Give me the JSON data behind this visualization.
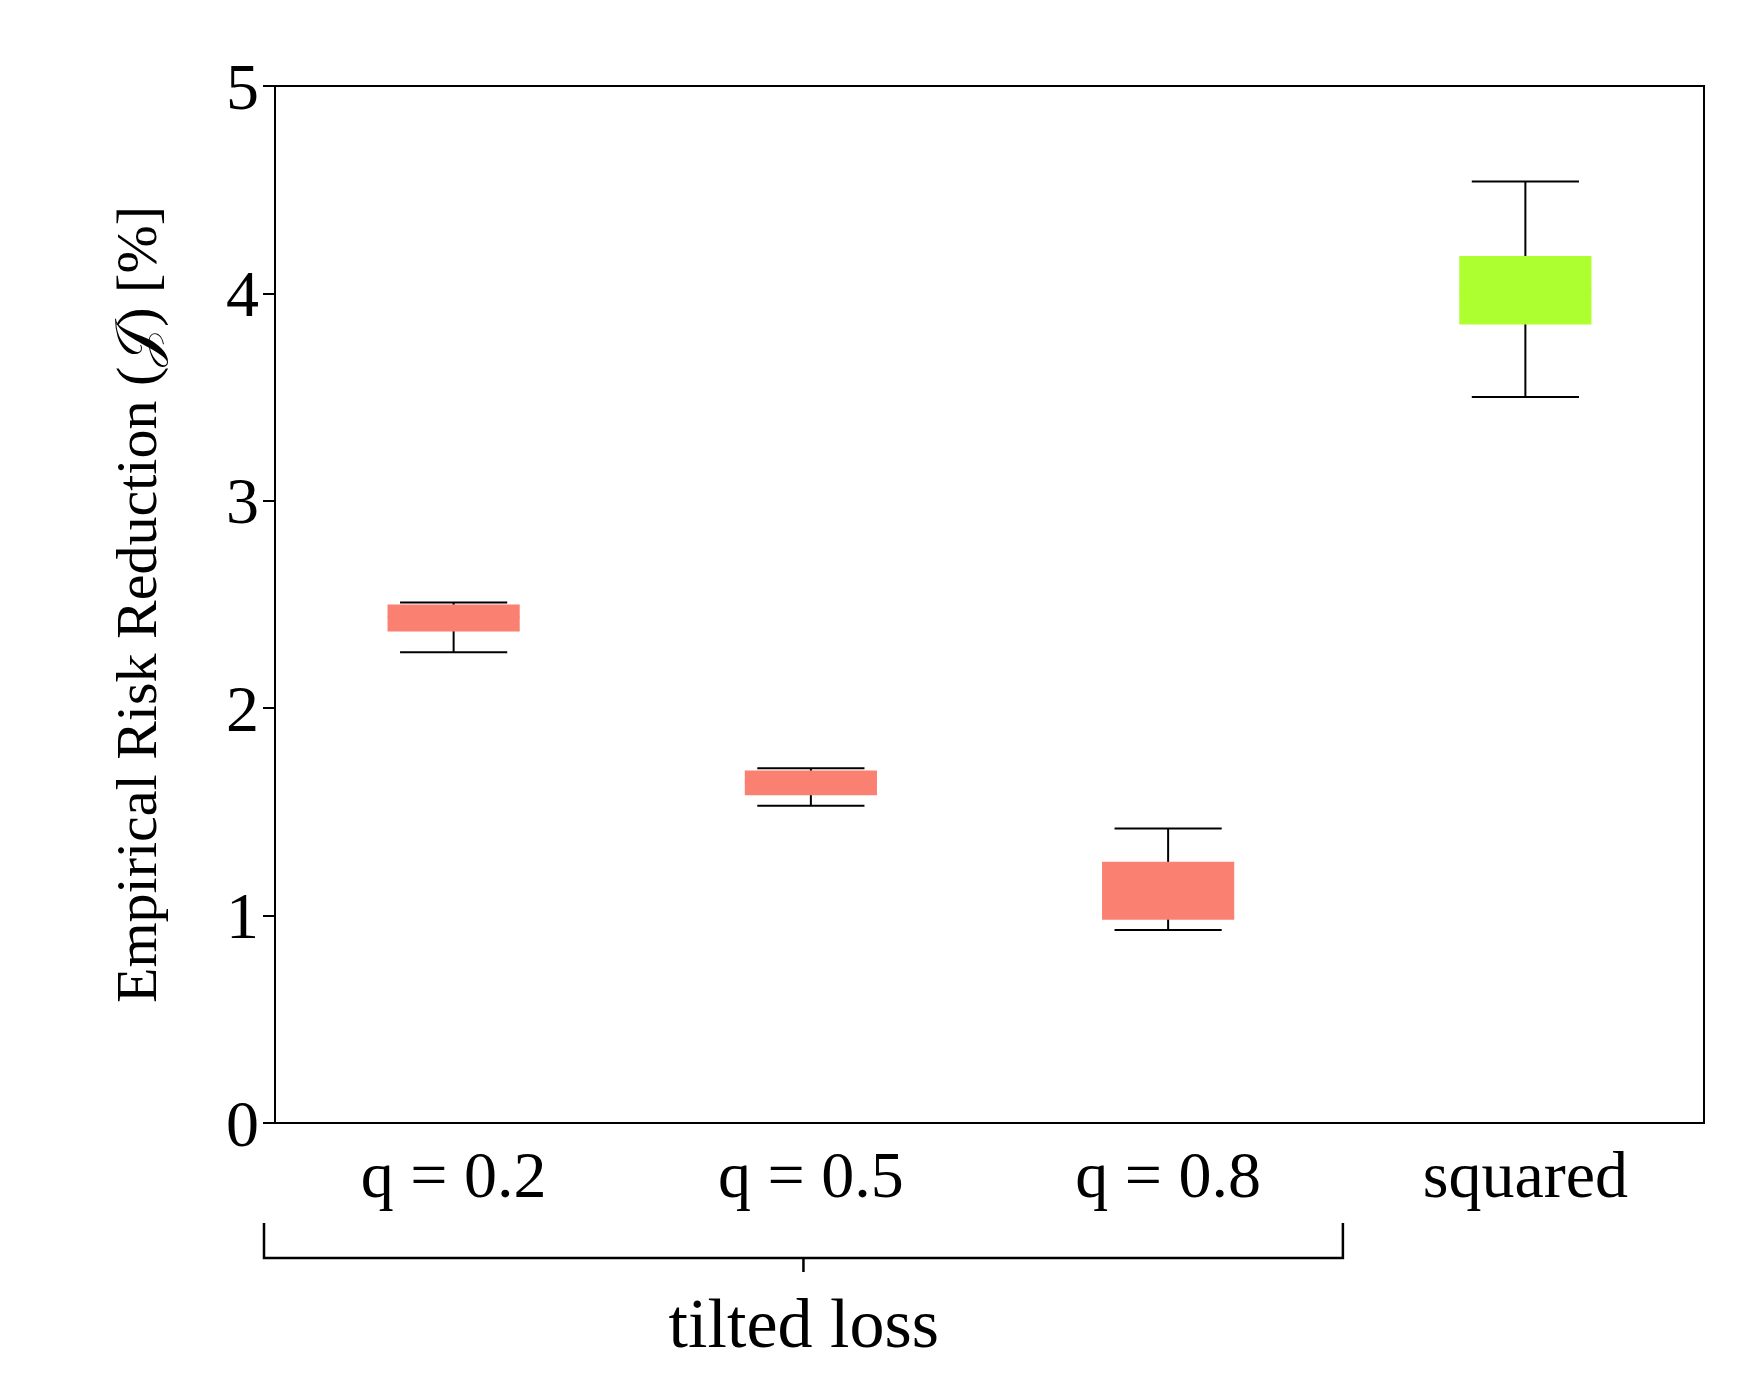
{
  "chart_data": {
    "type": "box",
    "ylabel": "Empirical Risk Reduction (𝒥) [%]",
    "xlabel": "tilted loss",
    "categories": [
      "q = 0.2",
      "q = 0.5",
      "q = 0.8",
      "squared"
    ],
    "boxes": [
      {
        "low": 2.27,
        "q1": 2.37,
        "median": 2.44,
        "q3": 2.5,
        "high": 2.51
      },
      {
        "low": 1.53,
        "q1": 1.58,
        "median": 1.64,
        "q3": 1.7,
        "high": 1.71
      },
      {
        "low": 0.93,
        "q1": 0.98,
        "median": 1.12,
        "q3": 1.26,
        "high": 1.42
      },
      {
        "low": 3.5,
        "q1": 3.85,
        "median": 4.02,
        "q3": 4.18,
        "high": 4.54
      }
    ],
    "colors": [
      "#fa8072",
      "#fa8072",
      "#fa8072",
      "#adff2f"
    ],
    "ylim": [
      0,
      5
    ],
    "yticks": [
      0,
      1,
      2,
      3,
      4,
      5
    ],
    "grid": false
  }
}
